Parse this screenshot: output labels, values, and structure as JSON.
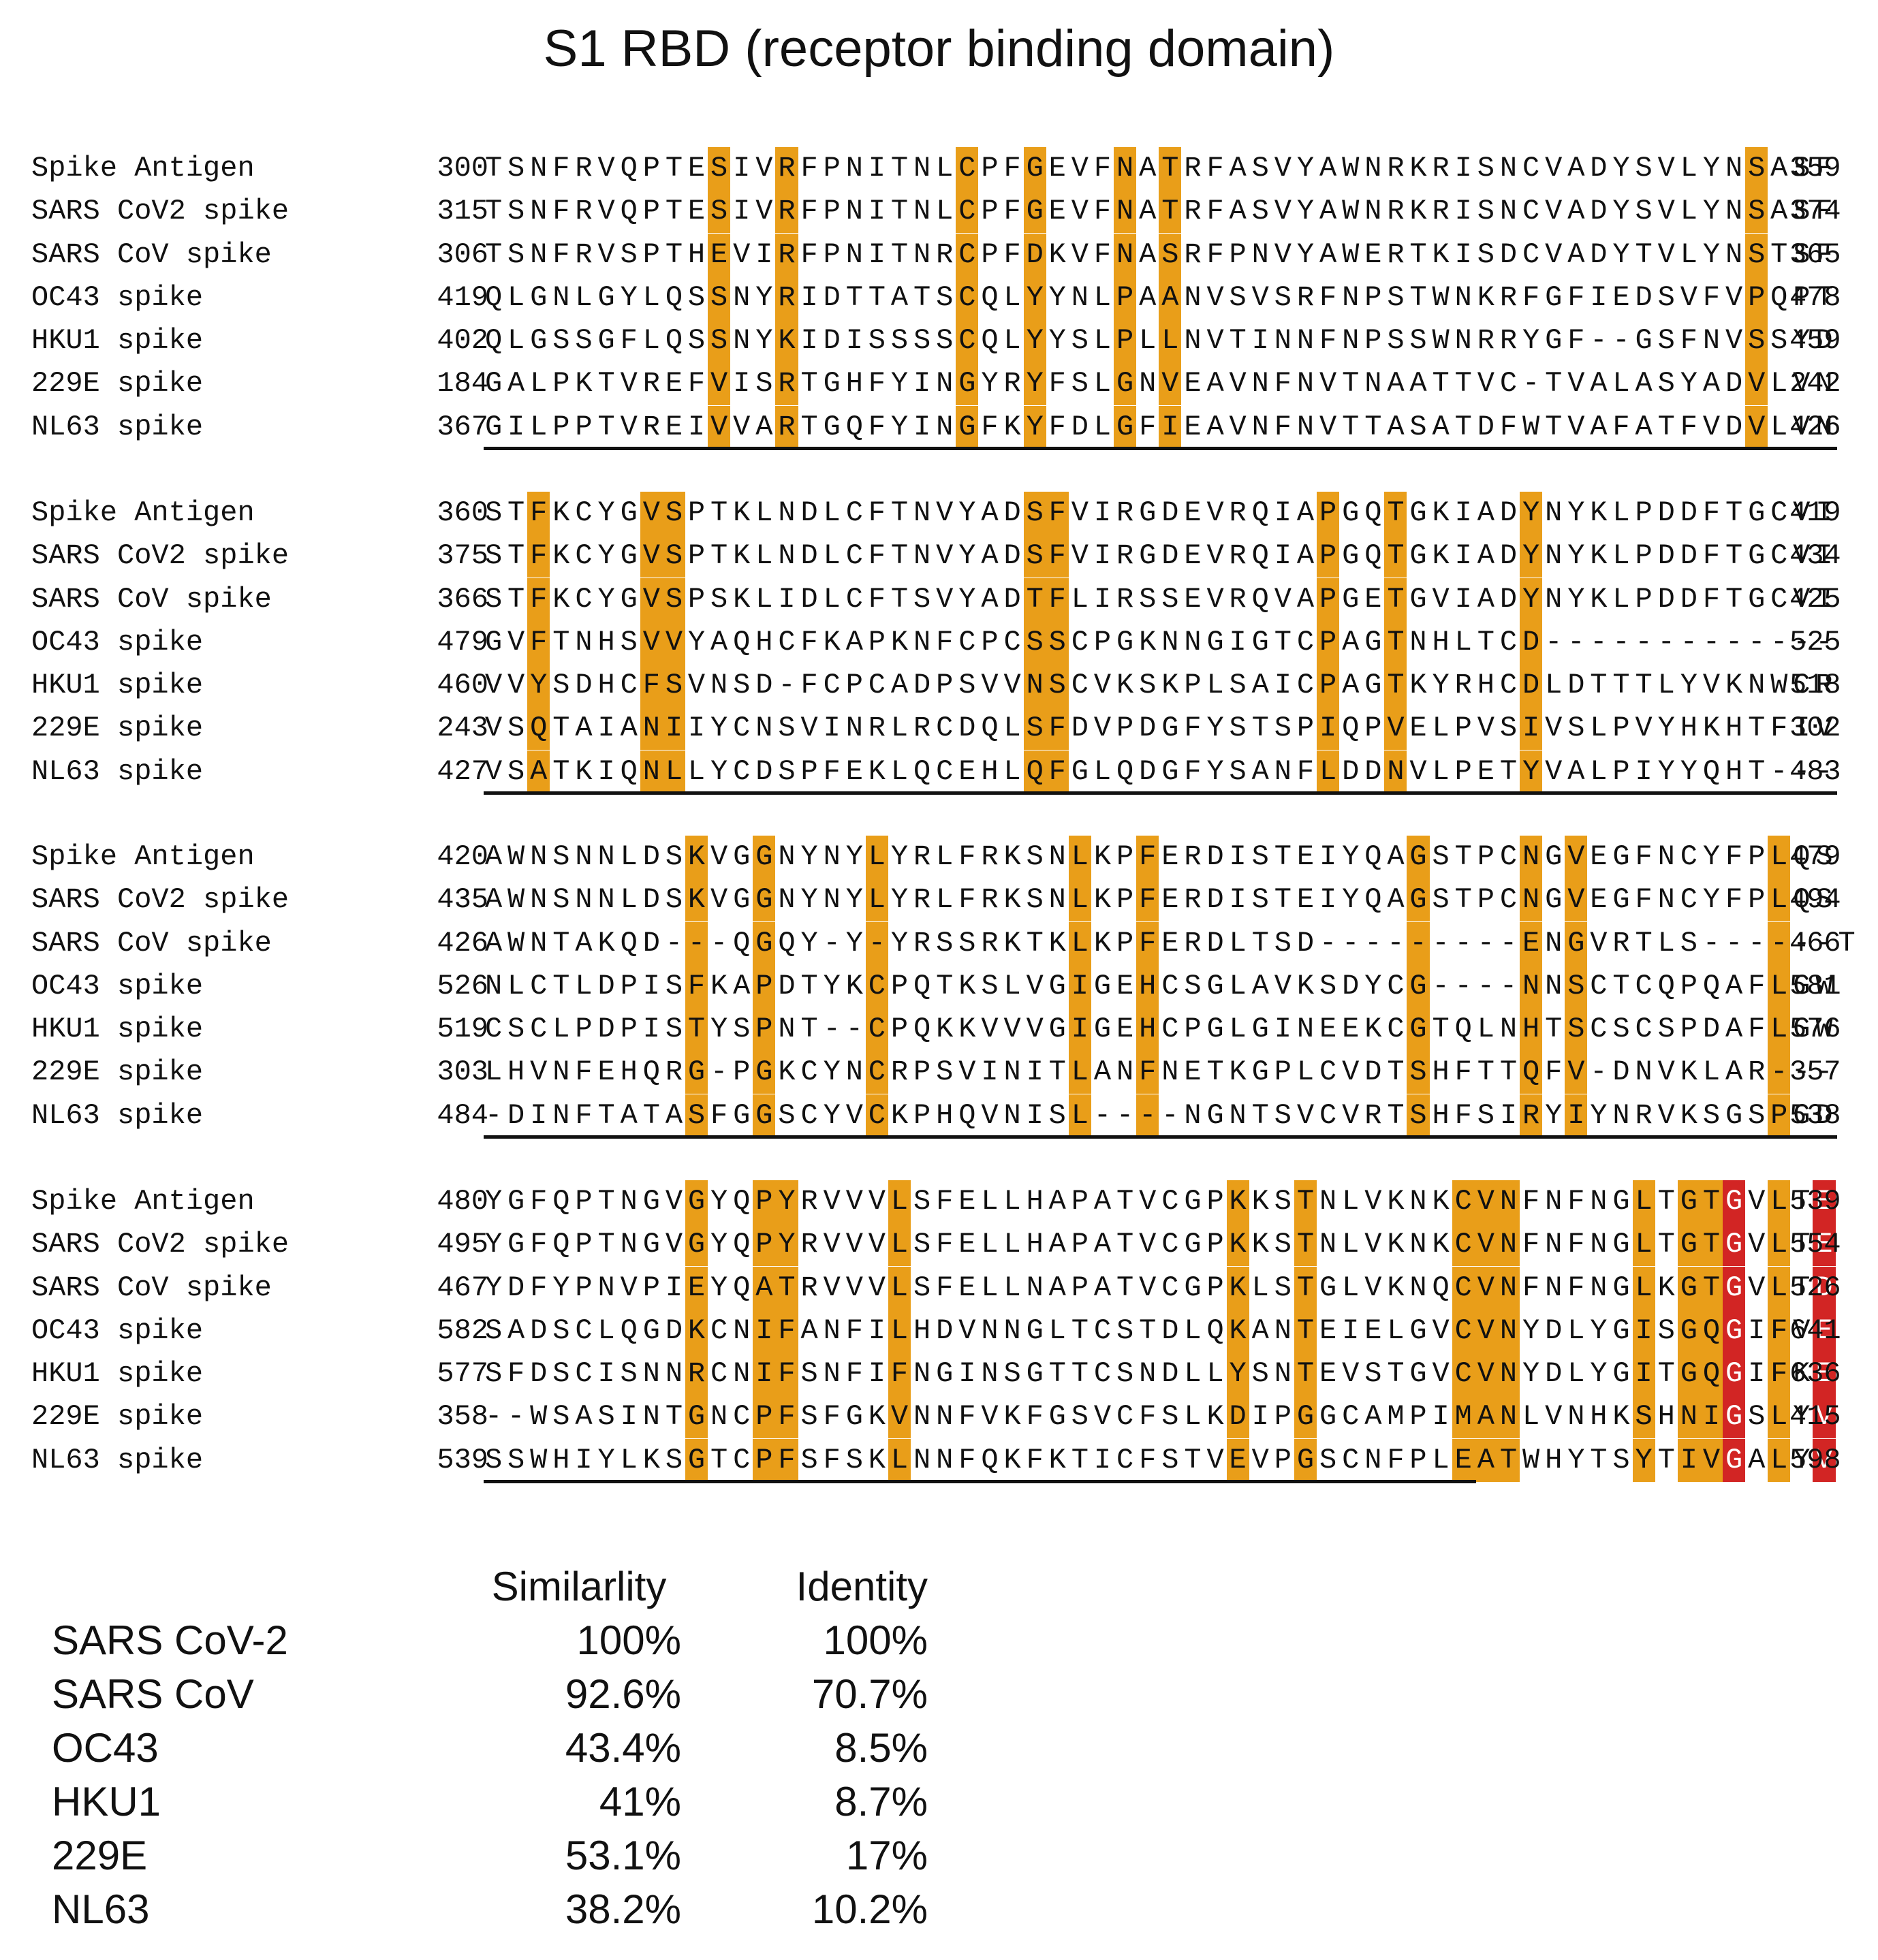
{
  "title": "S1 RBD (receptor binding domain)",
  "colors": {
    "conserved": "#E99E19",
    "key": "#D22524",
    "text": "#111111",
    "background": "#ffffff"
  },
  "blocks": [
    {
      "rows": [
        {
          "name": "Spike Antigen",
          "start": "300",
          "seq": "TSNFRVQPTESIVRFPNITNLCPFGEVFNATRFASVYAWNRKRISNCVADYSVLYNSASF",
          "end": "359"
        },
        {
          "name": "SARS CoV2 spike",
          "start": "315",
          "seq": "TSNFRVQPTESIVRFPNITNLCPFGEVFNATRFASVYAWNRKRISNCVADYSVLYNSASF",
          "end": "374"
        },
        {
          "name": "SARS CoV spike",
          "start": "306",
          "seq": "TSNFRVSPTHEVIRFPNITNRCPFDKVFNASRFPNVYAWERTKISDCVADYTVLYNSTSF",
          "end": "365"
        },
        {
          "name": "OC43 spike",
          "start": "419",
          "seq": "QLGNLGYLQSSNYRIDTTATSCQLYYNLPAANVSVSRFNPSTWNKRFGFIEDSVFVPQPT",
          "end": "478"
        },
        {
          "name": "HKU1 spike",
          "start": "402",
          "seq": "QLGSSGFLQSSNYKIDISSSSCQLYYSLPLLNVTINNFNPSSWNRRYGF--GSFNVSSYD",
          "end": "459"
        },
        {
          "name": "229E spike",
          "start": "184",
          "seq": "GALPKTVREFVISRTGHFYINGYRYFSLGNVEAVNFNVTNAATTVC-TVALASYADVLVN",
          "end": "242"
        },
        {
          "name": "NL63 spike",
          "start": "367",
          "seq": "GILPPTVREIVVARTGQFYINGFKYFDLGFIEAVNFNVTTASATDFWTVAFATFVDVLVN",
          "end": "426"
        }
      ],
      "orange_cols": [
        10,
        13,
        21,
        24,
        28,
        30,
        56
      ],
      "red_cols": []
    },
    {
      "rows": [
        {
          "name": "Spike Antigen",
          "start": "360",
          "seq": "STFKCYGVSPTKLNDLCFTNVYADSFVIRGDEVRQIAPGQTGKIADYNYKLPDDFTGCVI",
          "end": "419"
        },
        {
          "name": "SARS CoV2 spike",
          "start": "375",
          "seq": "STFKCYGVSPTKLNDLCFTNVYADSFVIRGDEVRQIAPGQTGKIADYNYKLPDDFTGCVI",
          "end": "434"
        },
        {
          "name": "SARS CoV spike",
          "start": "366",
          "seq": "STFKCYGVSPSKLIDLCFTSVYADTFLIRSSEVRQVAPGETGVIADYNYKLPDDFTGCVI",
          "end": "425"
        },
        {
          "name": "OC43 spike",
          "start": "479",
          "seq": "GVFTNHSVVYAQHCFKAPKNFCPCSSCPGKNNGIGTCPAGTNHLTCD-------------",
          "end": "525"
        },
        {
          "name": "HKU1 spike",
          "start": "460",
          "seq": "VVYSDHCFSVNSD-FCPCADPSVVNSCVKSKPLSAICPAGTKYRHCDLDTTTLYVKNWCR",
          "end": "518"
        },
        {
          "name": "229E spike",
          "start": "243",
          "seq": "VSQTAIANIIYCNSVINRLRCDQLSFDVPDGFYSTSPIQPVELPVSIVSLPVYHKHTFIV",
          "end": "302"
        },
        {
          "name": "NL63 spike",
          "start": "427",
          "seq": "VSATKIQNLLYCDSPFEKLQCEHLQFGLQDGFYSANFLDDNVLPETYVALPIYYQHT---",
          "end": "483"
        }
      ],
      "orange_cols": [
        2,
        7,
        8,
        24,
        25,
        37,
        40,
        46
      ],
      "red_cols": []
    },
    {
      "rows": [
        {
          "name": "Spike Antigen",
          "start": "420",
          "seq": "AWNSNNLDSKVGGNYNYLYRLFRKSNLKPFERDISTEIYQAGSTPCNGVEGFNCYFPLQS",
          "end": "479"
        },
        {
          "name": "SARS CoV2 spike",
          "start": "435",
          "seq": "AWNSNNLDSKVGGNYNYLYRLFRKSNLKPFERDISTEIYQAGSTPCNGVEGFNCYFPLQS",
          "end": "494"
        },
        {
          "name": "SARS CoV spike",
          "start": "426",
          "seq": "AWNTAKQD---QGQY-Y-YRSSRKTKLKPFERDLTSD---------ENGVRTLS------T",
          "end": "466"
        },
        {
          "name": "OC43 spike",
          "start": "526",
          "seq": "NLCTLDPISFKAPDTYKCPQTKSLVGIGEHCSGLAVKSDYCG----NNSCTCQPQAFLGW",
          "end": "581"
        },
        {
          "name": "HKU1 spike",
          "start": "519",
          "seq": "CSCLPDPISTYSPNT--CPQKKVVVGIGEHCPGLGINEEKCGTQLNHTSCSCSPDAFLGW",
          "end": "576"
        },
        {
          "name": "229E spike",
          "start": "303",
          "seq": "LHVNFEHQRG-PGKCYNCRPSVINITLANFNETKGPLCVDTSHFTTQFV-DNVKLAR---",
          "end": "357"
        },
        {
          "name": "NL63 spike",
          "start": "484",
          "seq": "-DINFTATASFGGSCYVCKPHQVNISL----NGNTSVCVRTSHFSIRYIYNRVKSGSPGD",
          "end": "538"
        }
      ],
      "orange_cols": [
        9,
        12,
        17,
        26,
        29,
        41,
        46,
        48,
        57
      ],
      "red_cols": []
    },
    {
      "rows": [
        {
          "name": "Spike Antigen",
          "start": "480",
          "seq": "YGFQPTNGVGYQPYRVVVLSFELLHAPATVCGPKKSTNLVKNKCVNFNFNGLTGTGVLTE",
          "end": "539"
        },
        {
          "name": "SARS CoV2 spike",
          "start": "495",
          "seq": "YGFQPTNGVGYQPYRVVVLSFELLHAPATVCGPKKSTNLVKNKCVNFNFNGLTGTGVLTE",
          "end": "554"
        },
        {
          "name": "SARS CoV spike",
          "start": "467",
          "seq": "YDFYPNVPIEYQATRVVVLSFELLNAPATVCGPKLSTGLVKNQCVNFNFNGLKGTGVLTD",
          "end": "526"
        },
        {
          "name": "OC43 spike",
          "start": "582",
          "seq": "SADSCLQGDKCNIFANFILHDVNNGLTCSTDLQKANTEIELGVCVNYDLYGISGQGIFVE",
          "end": "641"
        },
        {
          "name": "HKU1 spike",
          "start": "577",
          "seq": "SFDSCISNNRCNIFSNFIFNGINSGTTCSNDLLYSNTEVSTGVCVNYDLYGITGQGIFKE",
          "end": "636"
        },
        {
          "name": "229E spike",
          "start": "358",
          "seq": "--WSASINTGNCPFSFGKVNNFVKFGSVCFSLKDIPGGCAMPIMANLVNHKSHNIGSLYV",
          "end": "415"
        },
        {
          "name": "NL63 spike",
          "start": "539",
          "seq": "SSWHIYLKSGTCPFSFSKLNNFQKFKTICFSTVEVPGSCNFPLEATWHYTSYTIVGALYV",
          "end": "598"
        }
      ],
      "orange_cols": [
        9,
        12,
        13,
        18,
        33,
        36,
        43,
        44,
        45,
        51,
        53,
        54,
        57
      ],
      "red_cols": [
        55,
        59
      ]
    }
  ],
  "stats": {
    "headers": [
      "",
      "Similarlity",
      "Identity"
    ],
    "rows": [
      {
        "name": "SARS CoV-2",
        "similarity": "100%",
        "identity": "100%"
      },
      {
        "name": "SARS CoV",
        "similarity": "92.6%",
        "identity": "70.7%"
      },
      {
        "name": "OC43",
        "similarity": "43.4%",
        "identity": "8.5%"
      },
      {
        "name": "HKU1",
        "similarity": "41%",
        "identity": "8.7%"
      },
      {
        "name": "229E",
        "similarity": "53.1%",
        "identity": "17%"
      },
      {
        "name": "NL63",
        "similarity": "38.2%",
        "identity": "10.2%"
      }
    ]
  }
}
